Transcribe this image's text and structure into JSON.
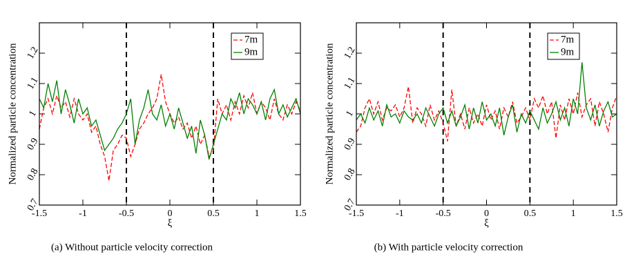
{
  "chart_data": [
    {
      "type": "line",
      "caption": "(a) Without particle velocity correction",
      "xlabel": "ξ",
      "ylabel": "Normalized particle concentration",
      "x": [
        -1.5,
        -1.45,
        -1.4,
        -1.35,
        -1.3,
        -1.25,
        -1.2,
        -1.15,
        -1.1,
        -1.05,
        -1,
        -0.95,
        -0.9,
        -0.85,
        -0.8,
        -0.75,
        -0.7,
        -0.65,
        -0.6,
        -0.55,
        -0.5,
        -0.45,
        -0.4,
        -0.35,
        -0.3,
        -0.25,
        -0.2,
        -0.15,
        -0.1,
        -0.05,
        0,
        0.05,
        0.1,
        0.15,
        0.2,
        0.25,
        0.3,
        0.35,
        0.4,
        0.45,
        0.5,
        0.55,
        0.6,
        0.65,
        0.7,
        0.75,
        0.8,
        0.85,
        0.9,
        0.95,
        1,
        1.05,
        1.1,
        1.15,
        1.2,
        1.25,
        1.3,
        1.35,
        1.4,
        1.45,
        1.5
      ],
      "series": [
        {
          "name": "7m",
          "color": "#ff0000",
          "dashed": true,
          "values": [
            0.95,
            1.02,
            1.05,
            1.0,
            1.06,
            1.02,
            1.04,
            0.99,
            1.05,
            1.0,
            0.98,
            1.0,
            0.94,
            0.96,
            0.9,
            0.86,
            0.78,
            0.88,
            0.9,
            0.93,
            0.92,
            0.86,
            0.9,
            0.95,
            0.97,
            1.0,
            1.02,
            1.05,
            1.13,
            1.04,
            1.0,
            0.97,
            0.99,
            0.95,
            0.97,
            0.92,
            0.96,
            0.9,
            0.93,
            0.86,
            0.88,
            1.05,
            1.0,
            1.03,
            0.98,
            1.04,
            1.0,
            1.06,
            1.02,
            1.07,
            1.0,
            1.04,
            1.02,
            0.98,
            1.05,
            1.0,
            0.98,
            1.03,
            1.0,
            1.04,
            1.01
          ]
        },
        {
          "name": "9m",
          "color": "#008000",
          "dashed": false,
          "values": [
            1.05,
            1.02,
            1.1,
            1.04,
            1.11,
            1.0,
            1.08,
            1.03,
            0.97,
            1.05,
            1.0,
            1.02,
            0.96,
            0.98,
            0.93,
            0.88,
            0.9,
            0.92,
            0.95,
            0.97,
            1.0,
            1.05,
            0.9,
            0.98,
            1.02,
            1.08,
            1.0,
            0.98,
            1.03,
            0.96,
            1.0,
            0.95,
            1.02,
            0.97,
            0.92,
            0.96,
            0.87,
            0.98,
            0.93,
            0.85,
            0.9,
            0.95,
            1.0,
            0.98,
            1.05,
            1.02,
            1.07,
            1.0,
            1.05,
            1.03,
            1.0,
            1.04,
            0.98,
            1.05,
            1.08,
            1.0,
            1.03,
            0.99,
            1.02,
            1.05,
            1.0
          ]
        }
      ],
      "xlim": [
        -1.5,
        1.5
      ],
      "xticks": [
        -1.5,
        -1,
        -0.5,
        0,
        0.5,
        1,
        1.5
      ],
      "ylim": [
        0.7,
        1.3
      ],
      "yticks": [
        0.7,
        0.8,
        0.9,
        1,
        1.1,
        1.2
      ],
      "vlines": [
        -0.5,
        0.5
      ],
      "legend": "upper right"
    },
    {
      "type": "line",
      "caption": "(b) With particle velocity correction",
      "xlabel": "ξ",
      "ylabel": "Normalized particle concentration",
      "x": [
        -1.5,
        -1.45,
        -1.4,
        -1.35,
        -1.3,
        -1.25,
        -1.2,
        -1.15,
        -1.1,
        -1.05,
        -1,
        -0.95,
        -0.9,
        -0.85,
        -0.8,
        -0.75,
        -0.7,
        -0.65,
        -0.6,
        -0.55,
        -0.5,
        -0.45,
        -0.4,
        -0.35,
        -0.3,
        -0.25,
        -0.2,
        -0.15,
        -0.1,
        -0.05,
        0,
        0.05,
        0.1,
        0.15,
        0.2,
        0.25,
        0.3,
        0.35,
        0.4,
        0.45,
        0.5,
        0.55,
        0.6,
        0.65,
        0.7,
        0.75,
        0.8,
        0.85,
        0.9,
        0.95,
        1,
        1.05,
        1.1,
        1.15,
        1.2,
        1.25,
        1.3,
        1.35,
        1.4,
        1.45,
        1.5
      ],
      "series": [
        {
          "name": "7m",
          "color": "#ff0000",
          "dashed": true,
          "values": [
            0.94,
            0.96,
            1.02,
            1.05,
            1.0,
            1.04,
            0.98,
            1.02,
            1.01,
            1.03,
            0.99,
            1.02,
            1.09,
            0.97,
            1.02,
            1.0,
            0.96,
            1.03,
            0.98,
            1.01,
            0.97,
            0.91,
            1.08,
            0.96,
            1.0,
            0.95,
            1.02,
            0.97,
            1.0,
            0.96,
            1.03,
            0.98,
            1.01,
            0.95,
            1.02,
            0.99,
            1.04,
            0.97,
            0.99,
            1.02,
            0.98,
            1.05,
            1.02,
            1.06,
            1.0,
            1.04,
            0.92,
            1.03,
            0.98,
            1.05,
            1.0,
            1.07,
            0.99,
            1.03,
            1.05,
            0.96,
            1.04,
            1.0,
            0.94,
            1.02,
            1.06
          ]
        },
        {
          "name": "9m",
          "color": "#008000",
          "dashed": false,
          "values": [
            0.98,
            1.0,
            0.97,
            1.02,
            0.98,
            1.01,
            0.96,
            1.03,
            0.99,
            1.0,
            0.97,
            1.01,
            0.99,
            0.98,
            1.0,
            0.97,
            1.02,
            0.99,
            0.96,
            1.0,
            1.02,
            0.97,
            1.01,
            0.96,
            0.99,
            1.03,
            0.95,
            1.02,
            0.97,
            1.04,
            0.98,
            1.0,
            0.96,
            1.02,
            0.93,
            0.99,
            1.03,
            0.94,
            1.0,
            0.97,
            1.01,
            0.98,
            0.95,
            1.02,
            0.97,
            1.0,
            1.04,
            0.98,
            1.02,
            0.96,
            1.05,
            1.0,
            1.17,
            1.02,
            0.98,
            1.03,
            0.96,
            1.01,
            1.04,
            0.99,
            1.0
          ]
        }
      ],
      "xlim": [
        -1.5,
        1.5
      ],
      "xticks": [
        -1.5,
        -1,
        -0.5,
        0,
        0.5,
        1,
        1.5
      ],
      "ylim": [
        0.7,
        1.3
      ],
      "yticks": [
        0.7,
        0.8,
        0.9,
        1,
        1.1,
        1.2
      ],
      "vlines": [
        -0.5,
        0.5
      ],
      "legend": "upper right"
    }
  ]
}
